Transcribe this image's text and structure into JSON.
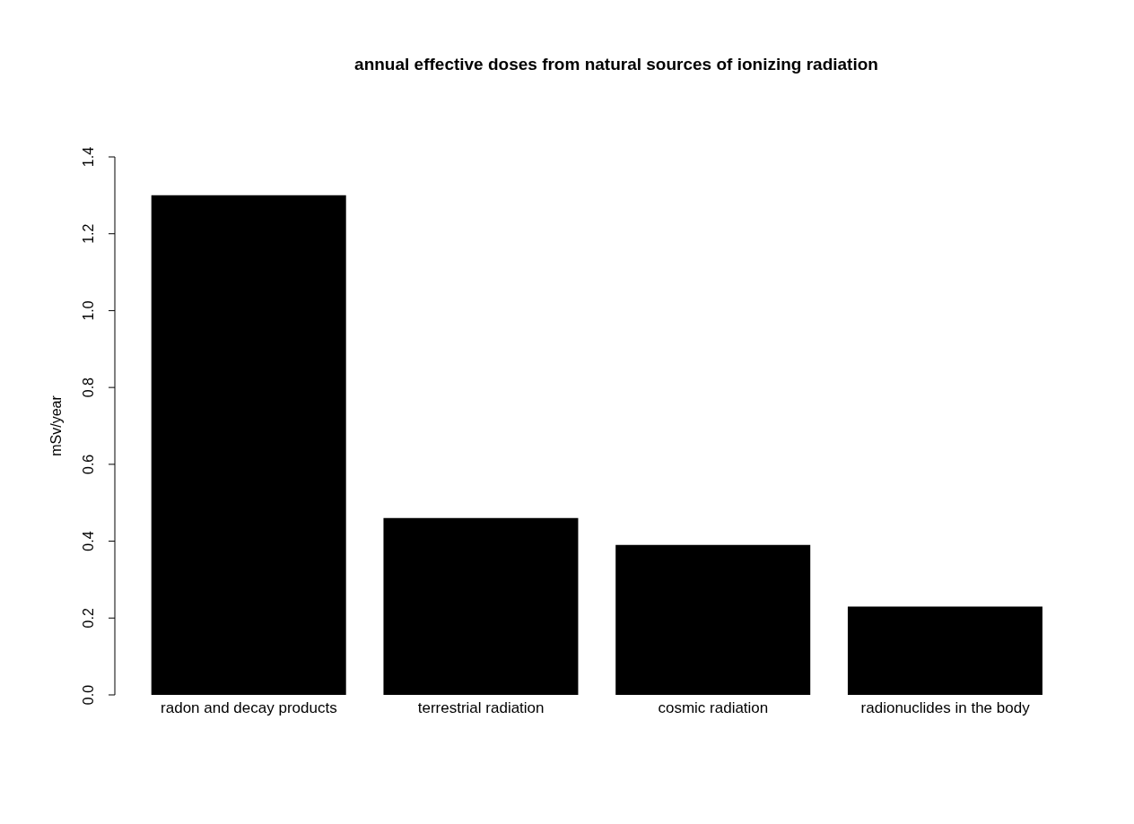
{
  "chart_data": {
    "type": "bar",
    "title": "annual effective doses from natural sources of ionizing radiation",
    "ylabel": "mSv/year",
    "categories": [
      "radon and decay products",
      "terrestrial radiation",
      "cosmic radiation",
      "radionuclides in the body"
    ],
    "values": [
      1.3,
      0.46,
      0.39,
      0.23
    ],
    "color": "#000000",
    "ylim": [
      0,
      1.4
    ],
    "yticks": [
      {
        "value": 0,
        "label": "0.0"
      },
      0.2,
      0.4,
      0.6,
      0.8,
      {
        "value": 1,
        "label": "1.0"
      },
      1.2,
      1.4
    ]
  }
}
